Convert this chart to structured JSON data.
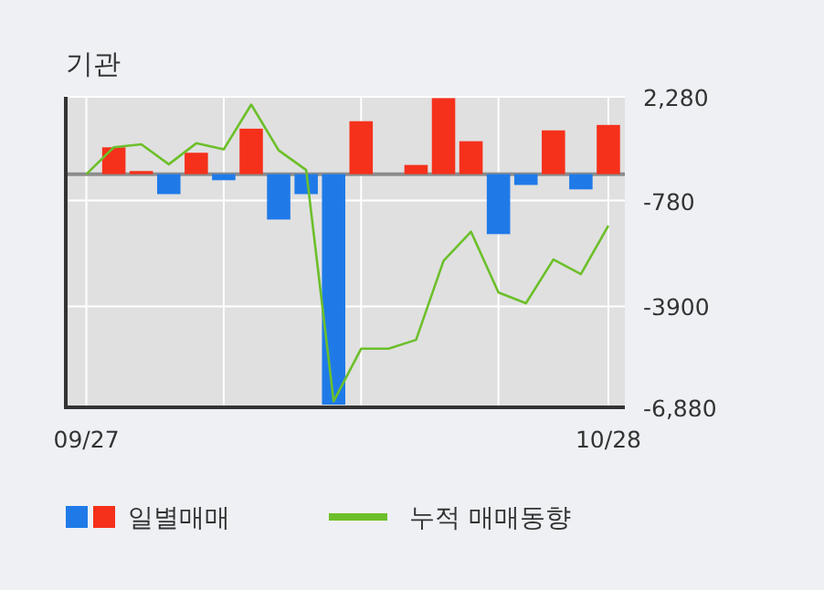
{
  "chart_data": {
    "type": "bar",
    "title": "기관",
    "categories": [
      "09/27",
      null,
      null,
      null,
      null,
      null,
      null,
      null,
      null,
      null,
      null,
      null,
      null,
      null,
      null,
      null,
      null,
      null,
      null,
      "10/28"
    ],
    "series": [
      {
        "name": "일별매매",
        "values": [
          null,
          790,
          90,
          -590,
          630,
          -180,
          1340,
          -1340,
          -590,
          -6800,
          1560,
          null,
          270,
          2240,
          970,
          -1770,
          -320,
          1290,
          -450,
          1450
        ],
        "colors": [
          "#f5301b",
          "#f5301b",
          "#f5301b",
          "#1f7ae8",
          "#f5301b",
          "#1f7ae8",
          "#f5301b",
          "#1f7ae8",
          "#1f7ae8",
          "#1f7ae8",
          "#f5301b",
          "#f5301b",
          "#f5301b",
          "#f5301b",
          "#f5301b",
          "#1f7ae8",
          "#1f7ae8",
          "#f5301b",
          "#1f7ae8",
          "#f5301b"
        ]
      },
      {
        "type": "line",
        "name": "누적 매매동향",
        "color": "#6cbf2a",
        "values": [
          0,
          790,
          880,
          290,
          910,
          730,
          2050,
          700,
          120,
          -6700,
          -5150,
          -5150,
          -4890,
          -2560,
          -1700,
          -3490,
          -3810,
          -2520,
          -2950,
          -1520
        ]
      }
    ],
    "ylim": [
      -6880,
      2280
    ],
    "yticks": [
      {
        "value": 2280,
        "label": "2,280"
      },
      {
        "value": -780,
        "label": "-780"
      },
      {
        "value": -3900,
        "label": "-3900"
      },
      {
        "value": -6880,
        "label": "-6,880"
      }
    ],
    "ref_lines": [
      {
        "axis": "y",
        "value": 0,
        "color": "#8c8c8c"
      }
    ],
    "grid": true,
    "legend": "bottom"
  }
}
